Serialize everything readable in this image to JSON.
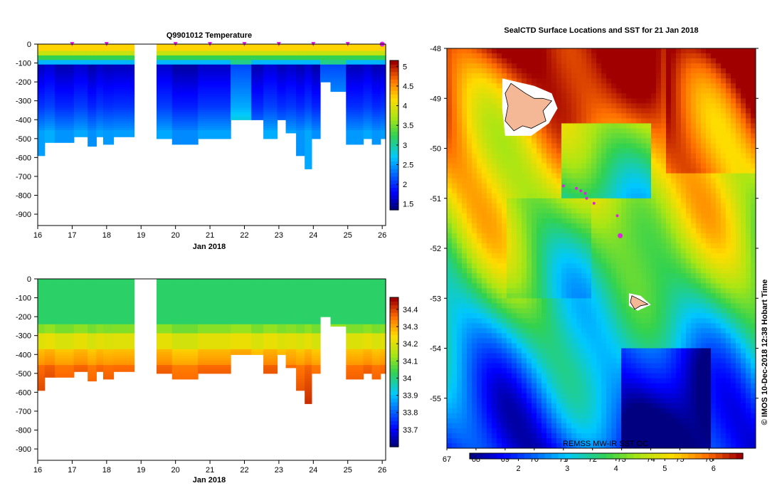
{
  "chart_data": [
    {
      "type": "heatmap",
      "title": "Q9901012  Temperature",
      "xlabel": "Jan 2018",
      "ylabel": "",
      "x_ticks": [
        "16",
        "17",
        "18",
        "19",
        "20",
        "21",
        "22",
        "23",
        "24",
        "25",
        "26"
      ],
      "y_ticks": [
        "0",
        "-100",
        "-200",
        "-300",
        "-400",
        "-500",
        "-600",
        "-700",
        "-800",
        "-900"
      ],
      "xlim": [
        16,
        26.1
      ],
      "ylim": [
        -960,
        0
      ],
      "colorbar": {
        "ticks": [
          "1.5",
          "2",
          "2.5",
          "3",
          "3.5",
          "4",
          "4.5",
          "5"
        ],
        "min": 1.35,
        "max": 5.15
      },
      "profile_markers_day": [
        17,
        18,
        20,
        21,
        22,
        23,
        24,
        25,
        26
      ],
      "profiles": [
        {
          "t0": 16.0,
          "t1": 16.2,
          "depth": 590,
          "var": 0.0
        },
        {
          "t0": 16.2,
          "t1": 16.5,
          "depth": 520,
          "var": 0.3
        },
        {
          "t0": 16.5,
          "t1": 17.05,
          "depth": 520,
          "var": -0.2
        },
        {
          "t0": 17.05,
          "t1": 17.45,
          "depth": 490,
          "var": 0.2
        },
        {
          "t0": 17.45,
          "t1": 17.7,
          "depth": 540,
          "var": -0.3
        },
        {
          "t0": 17.7,
          "t1": 17.9,
          "depth": 490,
          "var": 0.1
        },
        {
          "t0": 17.9,
          "t1": 18.2,
          "depth": 530,
          "var": -0.1
        },
        {
          "t0": 18.2,
          "t1": 18.8,
          "depth": 490,
          "var": 0.0
        },
        {
          "t0": 19.45,
          "t1": 19.9,
          "depth": 500,
          "var": 0.2
        },
        {
          "t0": 19.9,
          "t1": 20.65,
          "depth": 530,
          "var": -0.4
        },
        {
          "t0": 20.65,
          "t1": 21.6,
          "depth": 500,
          "var": 0.1
        },
        {
          "t0": 21.6,
          "t1": 22.2,
          "depth": 400,
          "var": 0.4
        },
        {
          "t0": 22.2,
          "t1": 22.55,
          "depth": 400,
          "var": -0.2
        },
        {
          "t0": 22.55,
          "t1": 22.95,
          "depth": 500,
          "var": 0.3
        },
        {
          "t0": 22.95,
          "t1": 23.2,
          "depth": 400,
          "var": -0.1
        },
        {
          "t0": 23.2,
          "t1": 23.5,
          "depth": 470,
          "var": 0.1
        },
        {
          "t0": 23.5,
          "t1": 23.75,
          "depth": 590,
          "var": -0.2
        },
        {
          "t0": 23.75,
          "t1": 23.95,
          "depth": 660,
          "var": 0.2
        },
        {
          "t0": 23.95,
          "t1": 24.2,
          "depth": 500,
          "var": -0.3
        },
        {
          "t0": 24.2,
          "t1": 24.5,
          "depth": 200,
          "var": 0.4
        },
        {
          "t0": 24.5,
          "t1": 24.95,
          "depth": 250,
          "var": 0.4
        },
        {
          "t0": 24.95,
          "t1": 25.45,
          "depth": 530,
          "var": -0.1
        },
        {
          "t0": 25.45,
          "t1": 25.7,
          "depth": 500,
          "var": 0.2
        },
        {
          "t0": 25.7,
          "t1": 25.95,
          "depth": 530,
          "var": -0.2
        },
        {
          "t0": 25.95,
          "t1": 26.1,
          "depth": 500,
          "var": 0.0
        }
      ]
    },
    {
      "type": "heatmap",
      "title": "",
      "xlabel": "Jan 2018",
      "ylabel": "",
      "x_ticks": [
        "16",
        "17",
        "18",
        "19",
        "20",
        "21",
        "22",
        "23",
        "24",
        "25",
        "26"
      ],
      "y_ticks": [
        "0",
        "-100",
        "-200",
        "-300",
        "-400",
        "-500",
        "-600",
        "-700",
        "-800",
        "-900"
      ],
      "xlim": [
        16,
        26.1
      ],
      "ylim": [
        -960,
        0
      ],
      "colorbar": {
        "ticks": [
          "33.7",
          "33.8",
          "33.9",
          "34",
          "34.1",
          "34.2",
          "34.3",
          "34.4"
        ],
        "min": 33.6,
        "max": 34.47
      }
    },
    {
      "type": "heatmap",
      "title": "SealCTD Surface Locations and SST for 21 Jan 2018",
      "xlabel": "",
      "ylabel": "",
      "x_ticks": [
        "67",
        "68",
        "69",
        "70",
        "71",
        "72",
        "73",
        "74",
        "75",
        "76"
      ],
      "y_ticks": [
        "-48",
        "-49",
        "-50",
        "-51",
        "-52",
        "-53",
        "-54",
        "-55"
      ],
      "xlim": [
        67,
        77.6
      ],
      "ylim": [
        -56,
        -48
      ],
      "colorbar": {
        "ticks": [
          "2",
          "3",
          "4",
          "5",
          "6"
        ],
        "min": 1.0,
        "max": 6.6
      },
      "annotation": "REMSS MW-IR SST OC",
      "credit": "© IMOS 10-Dec-2018 12:38 Hobart Time",
      "seal_track": [
        {
          "lon": 71.0,
          "lat": -50.75
        },
        {
          "lon": 71.45,
          "lat": -50.8
        },
        {
          "lon": 71.6,
          "lat": -50.85
        },
        {
          "lon": 71.75,
          "lat": -50.9
        },
        {
          "lon": 71.8,
          "lat": -51.0
        },
        {
          "lon": 72.05,
          "lat": -51.1
        },
        {
          "lon": 72.85,
          "lat": -51.35
        },
        {
          "lon": 72.95,
          "lat": -51.75
        }
      ]
    }
  ]
}
